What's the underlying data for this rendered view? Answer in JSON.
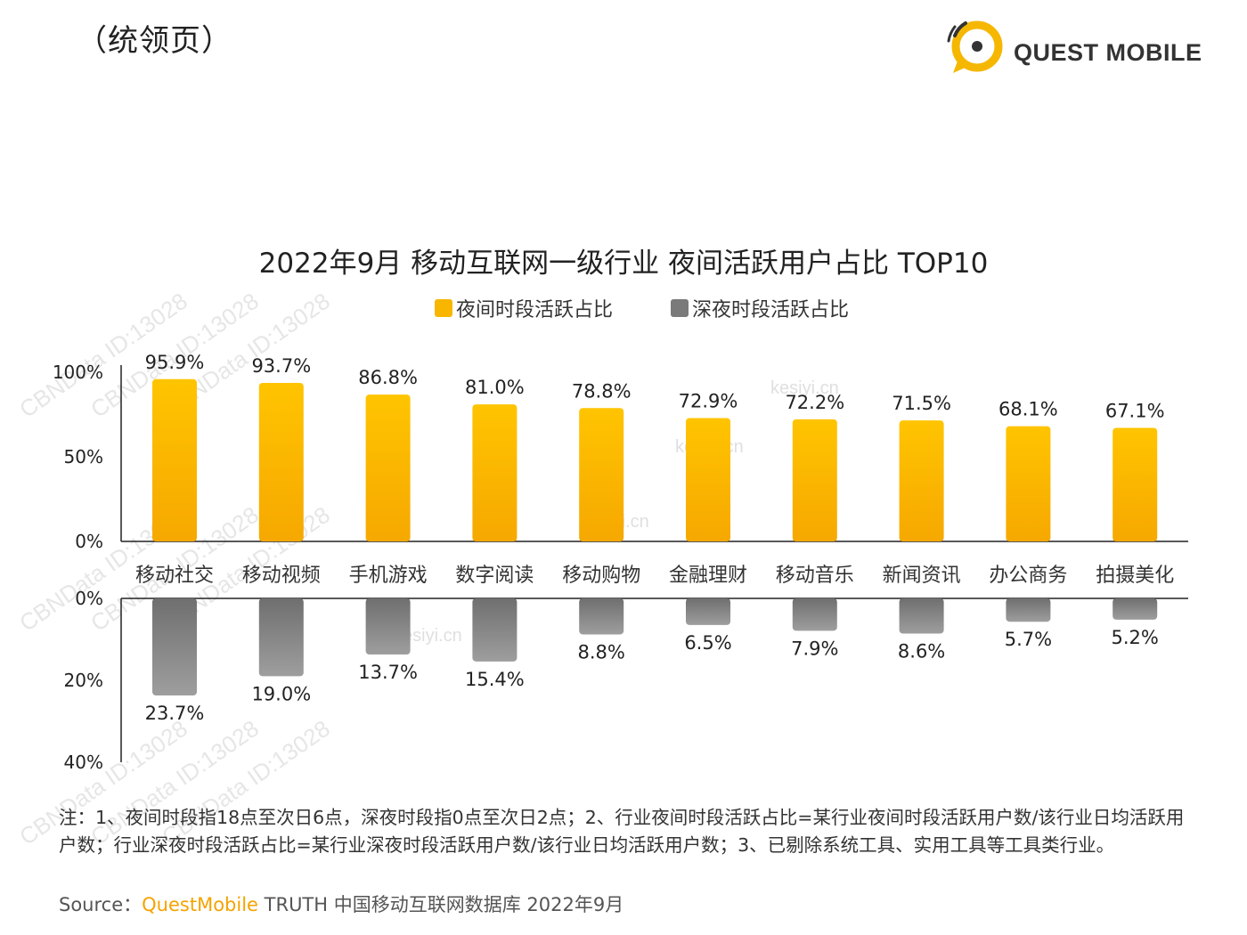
{
  "header": {
    "section_label": "（统领页）"
  },
  "logo": {
    "text": "QUEST MOBILE",
    "accent_color": "#f5b700"
  },
  "watermarks": [
    "CBNData ID:13028",
    "kesiyi.cn"
  ],
  "colors": {
    "primary": "#f8b600",
    "secondary": "#7a7a7a",
    "axis": "#222222"
  },
  "chart_data": {
    "type": "bar",
    "title": "2022年9月 移动互联网一级行业 夜间活跃用户占比 TOP10",
    "categories": [
      "移动社交",
      "移动视频",
      "手机游戏",
      "数字阅读",
      "移动购物",
      "金融理财",
      "移动音乐",
      "新闻资讯",
      "办公商务",
      "拍摄美化"
    ],
    "series": [
      {
        "name": "夜间时段活跃占比",
        "values": [
          95.9,
          93.7,
          86.8,
          81.0,
          78.8,
          72.9,
          72.2,
          71.5,
          68.1,
          67.1
        ],
        "labels": [
          "95.9%",
          "93.7%",
          "86.8%",
          "81.0%",
          "78.8%",
          "72.9%",
          "72.2%",
          "71.5%",
          "68.1%",
          "67.1%"
        ],
        "color": "#f8b600",
        "axis_ticks": [
          "100%",
          "50%",
          "0%"
        ],
        "axis_tick_values": [
          100,
          50,
          0
        ],
        "ylim": [
          0,
          100
        ]
      },
      {
        "name": "深夜时段活跃占比",
        "values": [
          23.7,
          19.0,
          13.7,
          15.4,
          8.8,
          6.5,
          7.9,
          8.6,
          5.7,
          5.2
        ],
        "labels": [
          "23.7%",
          "19.0%",
          "13.7%",
          "15.4%",
          "8.8%",
          "6.5%",
          "7.9%",
          "8.6%",
          "5.7%",
          "5.2%"
        ],
        "color": "#7a7a7a",
        "axis_ticks": [
          "0%",
          "20%",
          "40%"
        ],
        "axis_tick_values": [
          0,
          20,
          40
        ],
        "ylim": [
          0,
          40
        ],
        "direction": "downward"
      }
    ],
    "legend": "top-center",
    "grid": false
  },
  "footnote": {
    "text": "注：1、夜间时段指18点至次日6点，深夜时段指0点至次日2点；2、行业夜间时段活跃占比=某行业夜间时段活跃用户数/该行业日均活跃用户数；行业深夜时段活跃占比=某行业深夜时段活跃用户数/该行业日均活跃用户数；3、已剔除系统工具、实用工具等工具类行业。"
  },
  "source": {
    "prefix": "Source：",
    "brand": "QuestMobile",
    "rest": " TRUTH 中国移动互联网数据库 2022年9月"
  }
}
